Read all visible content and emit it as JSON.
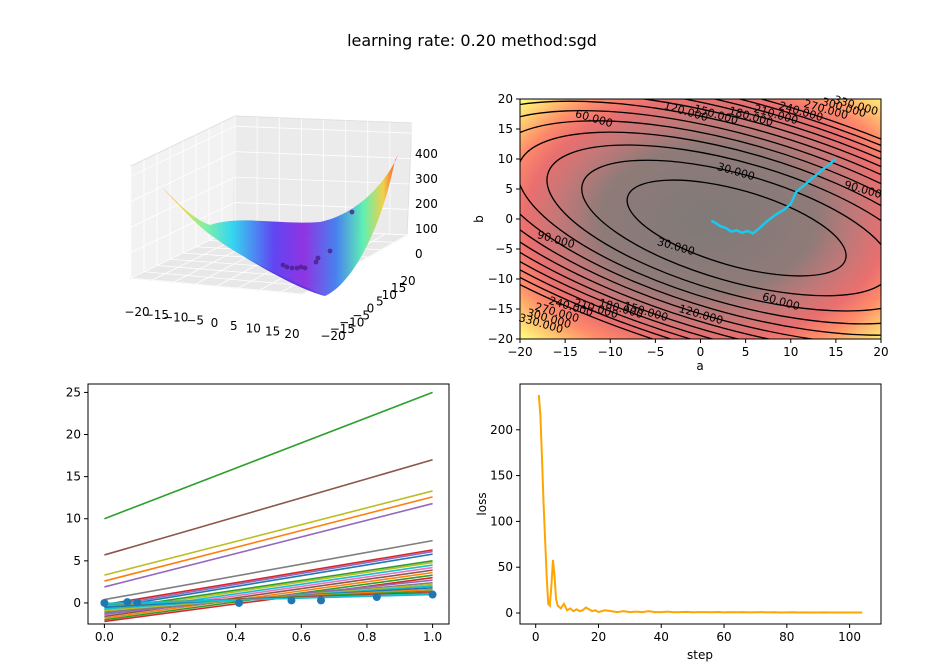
{
  "figure": {
    "title": "learning rate: 0.20 method:sgd"
  },
  "chart_data": [
    {
      "type": "surface3d",
      "description_axes": {
        "x_ticks": [
          -20,
          -15,
          -10,
          -5,
          0,
          5,
          10,
          15,
          20
        ],
        "y_ticks": [
          -20,
          -15,
          -10,
          -5,
          0,
          5,
          10,
          15,
          20
        ],
        "z_ticks": [
          0,
          100,
          200,
          300,
          400
        ]
      },
      "colormap": "rainbow",
      "zlim": [
        0,
        440
      ]
    },
    {
      "type": "contour",
      "xlabel": "a",
      "ylabel": "b",
      "xlim": [
        -20,
        20
      ],
      "ylim": [
        -20,
        20
      ],
      "x_ticks": [
        -20,
        -15,
        -10,
        -5,
        0,
        5,
        10,
        15,
        20
      ],
      "y_ticks": [
        -20,
        -15,
        -10,
        -5,
        0,
        5,
        10,
        15,
        20
      ],
      "level_labels": [
        "30.000",
        "30.000",
        "60.000",
        "60.000",
        "90.000",
        "90.000",
        "120.000",
        "120.000",
        "150.000",
        "150.000",
        "180.000",
        "180.000",
        "210.000",
        "210.000",
        "240.000",
        "240.000",
        "270.000",
        "270.000",
        "300.000",
        "300.000",
        "330.000",
        "330.000"
      ],
      "path": [
        [
          15,
          10
        ],
        [
          13.5,
          8.2
        ],
        [
          12,
          6.3
        ],
        [
          10.6,
          4.5
        ],
        [
          10,
          2.5
        ],
        [
          9.2,
          1.5
        ],
        [
          8.2,
          0.6
        ],
        [
          7.2,
          -0.6
        ],
        [
          6.4,
          -1.7
        ],
        [
          5.8,
          -2.4
        ],
        [
          5.2,
          -2.0
        ],
        [
          4.6,
          -2.3
        ],
        [
          4.0,
          -1.9
        ],
        [
          3.4,
          -2.1
        ],
        [
          2.8,
          -1.5
        ],
        [
          2.2,
          -1.2
        ],
        [
          1.6,
          -0.6
        ],
        [
          1.2,
          -0.3
        ]
      ],
      "path_color": "#19c9f0"
    },
    {
      "type": "line",
      "xlim": [
        -0.05,
        1.05
      ],
      "ylim": [
        -2.5,
        26
      ],
      "x_ticks": [
        0.0,
        0.2,
        0.4,
        0.6,
        0.8,
        1.0
      ],
      "y_ticks": [
        0,
        5,
        10,
        15,
        20,
        25
      ],
      "x_tick_labels": [
        "0.0",
        "0.2",
        "0.4",
        "0.6",
        "0.8",
        "1.0"
      ],
      "scatter": {
        "x": [
          0.0,
          0.07,
          0.1,
          0.41,
          0.57,
          0.66,
          0.83,
          1.0
        ],
        "y": [
          0.0,
          0.1,
          0.05,
          0.0,
          0.3,
          0.3,
          0.7,
          1.0
        ],
        "color": "#1f77b4"
      },
      "lines": [
        {
          "y0": 10.0,
          "y1": 25.0,
          "color": "#2ca02c"
        },
        {
          "y0": 5.7,
          "y1": 17.0,
          "color": "#8c564b"
        },
        {
          "y0": 3.3,
          "y1": 13.3,
          "color": "#bcbd22"
        },
        {
          "y0": 2.6,
          "y1": 12.6,
          "color": "#ff7f0e"
        },
        {
          "y0": 1.9,
          "y1": 11.8,
          "color": "#9467bd"
        },
        {
          "y0": 0.4,
          "y1": 7.4,
          "color": "#7f7f7f"
        },
        {
          "y0": -0.2,
          "y1": 6.3,
          "color": "#d62728"
        },
        {
          "y0": -0.4,
          "y1": 6.1,
          "color": "#9467bd"
        },
        {
          "y0": -0.6,
          "y1": 5.8,
          "color": "#1f77b4"
        },
        {
          "y0": -0.8,
          "y1": 5.0,
          "color": "#2ca02c"
        },
        {
          "y0": -1.0,
          "y1": 4.8,
          "color": "#bcbd22"
        },
        {
          "y0": -1.2,
          "y1": 4.5,
          "color": "#17becf"
        },
        {
          "y0": -1.4,
          "y1": 4.2,
          "color": "#e377c2"
        },
        {
          "y0": -1.6,
          "y1": 3.9,
          "color": "#8c564b"
        },
        {
          "y0": -1.8,
          "y1": 3.6,
          "color": "#ff7f0e"
        },
        {
          "y0": -2.0,
          "y1": 3.3,
          "color": "#2ca02c"
        },
        {
          "y0": -2.2,
          "y1": 3.0,
          "color": "#d62728"
        },
        {
          "y0": -1.3,
          "y1": 2.7,
          "color": "#9467bd"
        },
        {
          "y0": -1.1,
          "y1": 2.4,
          "color": "#7f7f7f"
        },
        {
          "y0": -0.9,
          "y1": 2.2,
          "color": "#bcbd22"
        },
        {
          "y0": -0.7,
          "y1": 2.0,
          "color": "#17becf"
        },
        {
          "y0": -0.5,
          "y1": 1.8,
          "color": "#1f77b4"
        },
        {
          "y0": -0.3,
          "y1": 1.6,
          "color": "#ff7f0e"
        },
        {
          "y0": -0.2,
          "y1": 1.4,
          "color": "#2ca02c"
        },
        {
          "y0": -0.1,
          "y1": 1.2,
          "color": "#d62728"
        },
        {
          "y0": -0.15,
          "y1": 1.1,
          "color": "#17becf"
        },
        {
          "y0": -0.05,
          "y1": 1.0,
          "color": "#17becf"
        }
      ]
    },
    {
      "type": "line",
      "xlabel": "step",
      "ylabel": "loss",
      "xlim": [
        -5,
        110
      ],
      "ylim": [
        -12,
        250
      ],
      "x_ticks": [
        0,
        20,
        40,
        60,
        80,
        100
      ],
      "y_ticks": [
        0,
        50,
        100,
        150,
        200
      ],
      "series": [
        {
          "color": "#ffa500",
          "x": [
            1,
            1.5,
            2,
            2.5,
            3,
            3.5,
            4,
            4.5,
            5,
            5.5,
            6,
            6.5,
            7,
            8,
            9,
            10,
            11,
            12,
            13,
            14,
            15,
            16,
            17,
            18,
            19,
            20,
            22,
            24,
            26,
            28,
            30,
            32,
            34,
            36,
            38,
            40,
            42,
            44,
            46,
            48,
            50,
            52,
            54,
            56,
            58,
            60,
            62,
            64,
            66,
            68,
            70,
            72,
            74,
            76,
            78,
            80,
            82,
            84,
            86,
            88,
            90,
            92,
            94,
            96,
            98,
            100,
            102,
            104
          ],
          "y": [
            238,
            215,
            170,
            120,
            80,
            40,
            10,
            8,
            30,
            58,
            40,
            15,
            8,
            5,
            10,
            3,
            5,
            2,
            4,
            2,
            3,
            6,
            4,
            2,
            3,
            1,
            3,
            2,
            1,
            2,
            1,
            1.5,
            1,
            2,
            1,
            1,
            1.5,
            0.8,
            1,
            1.2,
            0.8,
            1,
            1,
            0.8,
            1.1,
            0.7,
            1,
            0.8,
            0.9,
            0.7,
            0.8,
            1,
            0.7,
            0.8,
            0.6,
            0.7,
            0.8,
            0.6,
            0.7,
            0.6,
            0.6,
            0.7,
            0.5,
            0.6,
            0.6,
            0.5,
            0.5,
            0.5
          ]
        }
      ]
    }
  ]
}
